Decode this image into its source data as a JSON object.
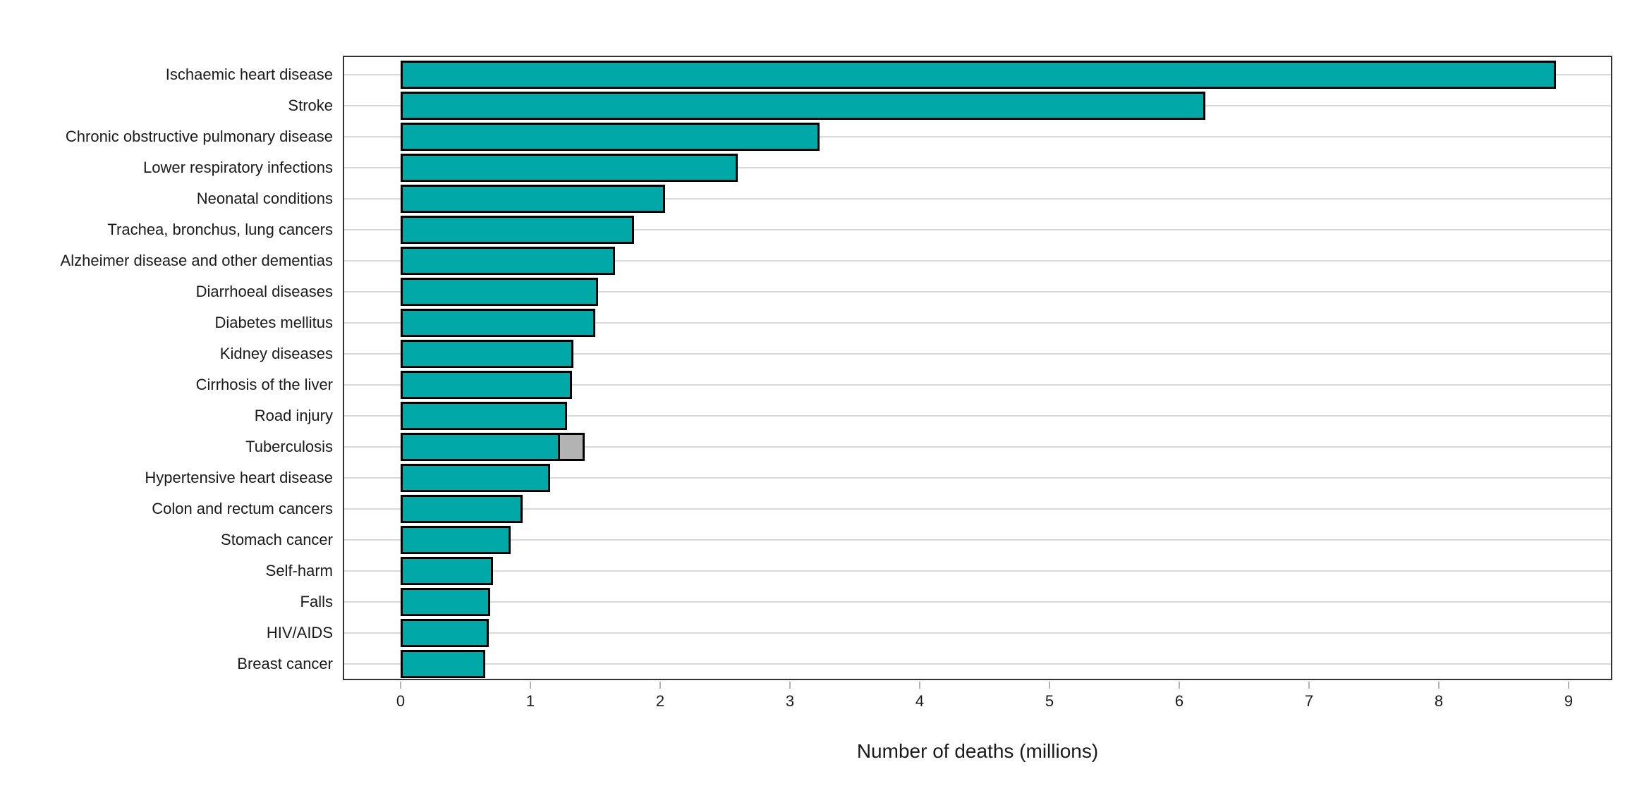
{
  "chart_data": {
    "type": "bar",
    "orientation": "horizontal",
    "title": "",
    "xlabel": "Number of deaths (millions)",
    "ylabel": "",
    "xlim": [
      0,
      9.35
    ],
    "xticks": [
      0,
      1,
      2,
      3,
      4,
      5,
      6,
      7,
      8,
      9
    ],
    "grid": "horizontal category gridlines only",
    "legend": "none",
    "bar_color": "#00A9A8",
    "bar_outline_color": "#000000",
    "secondary_segment_color": "#B3B3B3",
    "categories": [
      "Ischaemic heart disease",
      "Stroke",
      "Chronic obstructive pulmonary disease",
      "Lower respiratory infections",
      "Neonatal conditions",
      "Trachea, bronchus, lung cancers",
      "Alzheimer disease and other dementias",
      "Diarrhoeal diseases",
      "Diabetes mellitus",
      "Kidney diseases",
      "Cirrhosis of the liver",
      "Road injury",
      "Tuberculosis",
      "Hypertensive heart disease",
      "Colon and rectum cancers",
      "Stomach cancer",
      "Self-harm",
      "Falls",
      "HIV/AIDS",
      "Breast cancer"
    ],
    "values": [
      8.9,
      6.2,
      3.23,
      2.6,
      2.04,
      1.8,
      1.65,
      1.52,
      1.5,
      1.33,
      1.32,
      1.28,
      1.21,
      1.15,
      0.94,
      0.85,
      0.71,
      0.69,
      0.68,
      0.65
    ],
    "extra_segments": [
      {
        "category": "Tuberculosis",
        "start": 1.21,
        "end": 1.42,
        "color": "#B3B3B3"
      }
    ]
  },
  "colors": {
    "background": "#FFFFFF",
    "panel_border": "#333333",
    "gridline": "#D9D9D9",
    "tick": "#B3B3B3",
    "text": "#1A1A1A"
  }
}
